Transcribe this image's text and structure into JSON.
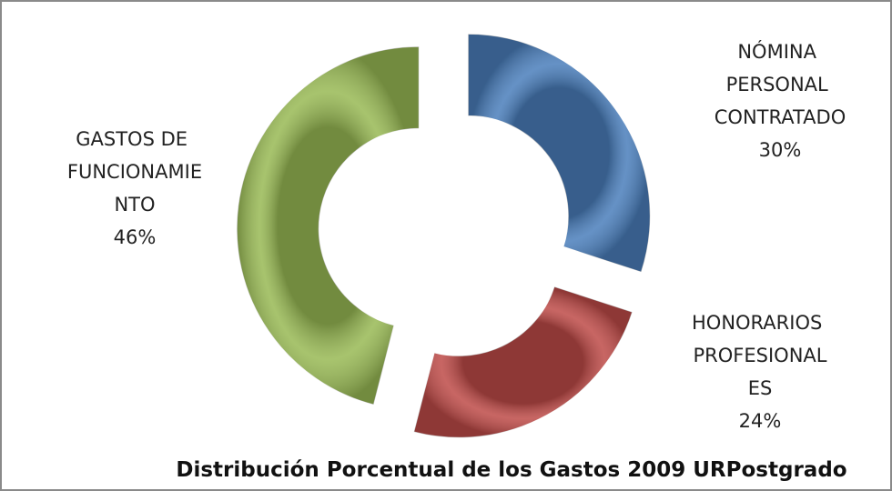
{
  "chart_data": {
    "type": "donut",
    "title": "Distribución Porcentual de los Gastos 2009 URPostgrado",
    "categories": [
      "NÓMINA PERSONAL CONTRATADO",
      "HONORARIOS PROFESIONALES",
      "GASTOS DE FUNCIONAMIENTO"
    ],
    "values": [
      30,
      24,
      46
    ],
    "value_labels": [
      "30%",
      "24%",
      "46%"
    ],
    "colors": [
      "#4a7ebb",
      "#be4b48",
      "#98b954"
    ]
  }
}
